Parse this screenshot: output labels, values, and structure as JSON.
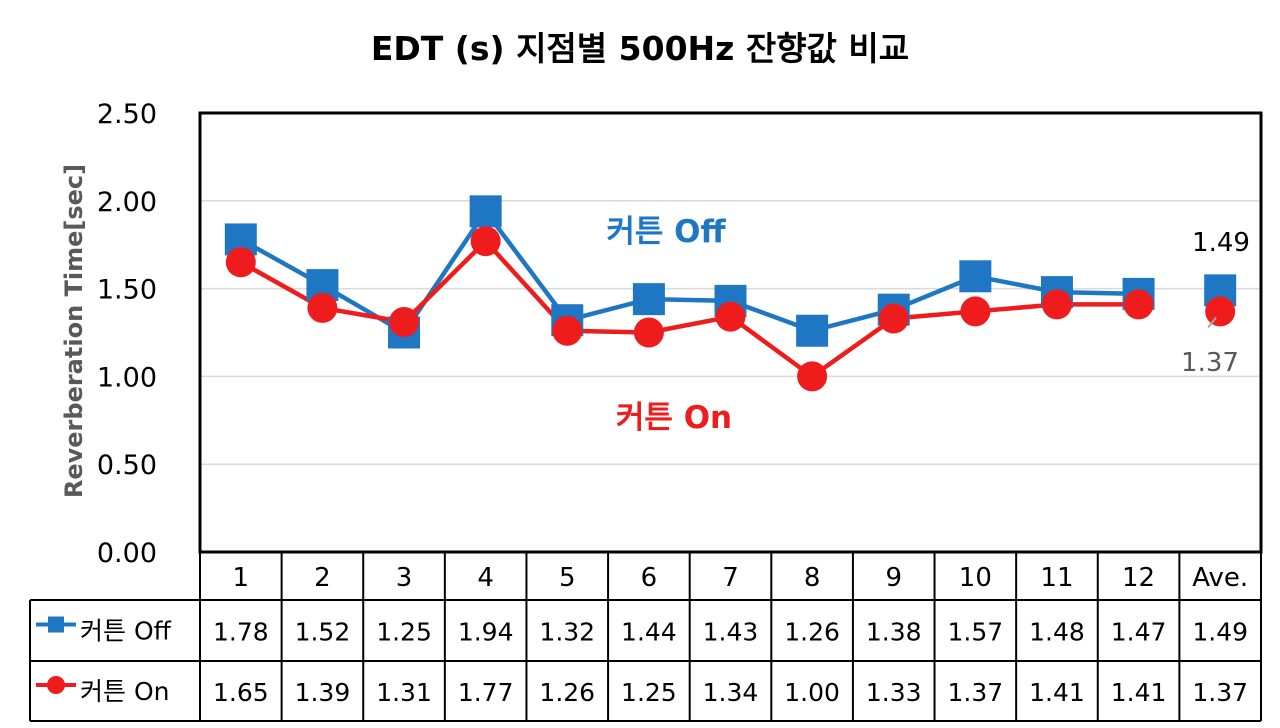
{
  "chart_data": {
    "type": "line",
    "title": "EDT (s) 지점별 500Hz 잔향값 비교",
    "ylabel": "Reverberation Time[sec]",
    "xlabel": "",
    "ylim": [
      0,
      2.5
    ],
    "yticks": [
      "0.00",
      "0.50",
      "1.00",
      "1.50",
      "2.00",
      "2.50"
    ],
    "grid": true,
    "legend_placement": "data-table",
    "categories": [
      "1",
      "2",
      "3",
      "4",
      "5",
      "6",
      "7",
      "8",
      "9",
      "10",
      "11",
      "12",
      "Ave."
    ],
    "series": [
      {
        "name": "커튼 Off",
        "color": "#1F77C4",
        "marker": "square",
        "values": [
          1.78,
          1.52,
          1.25,
          1.94,
          1.32,
          1.44,
          1.43,
          1.26,
          1.38,
          1.57,
          1.48,
          1.47,
          1.49
        ],
        "labels": [
          "1.78",
          "1.52",
          "1.25",
          "1.94",
          "1.32",
          "1.44",
          "1.43",
          "1.26",
          "1.38",
          "1.57",
          "1.48",
          "1.47",
          "1.49"
        ]
      },
      {
        "name": "커튼 On",
        "color": "#EE1C1C",
        "marker": "circle",
        "values": [
          1.65,
          1.39,
          1.31,
          1.77,
          1.26,
          1.25,
          1.34,
          1.0,
          1.33,
          1.37,
          1.41,
          1.41,
          1.37
        ],
        "labels": [
          "1.65",
          "1.39",
          "1.31",
          "1.77",
          "1.26",
          "1.25",
          "1.34",
          "1.00",
          "1.33",
          "1.37",
          "1.41",
          "1.41",
          "1.37"
        ]
      }
    ],
    "annotations": [
      {
        "text": "커튼 Off",
        "color": "#1F77C4"
      },
      {
        "text": "커튼 On",
        "color": "#EE1C1C"
      }
    ],
    "data_labels": [
      {
        "text": "1.49",
        "color": "#000000"
      },
      {
        "text": "1.37",
        "color": "#595959"
      }
    ]
  }
}
